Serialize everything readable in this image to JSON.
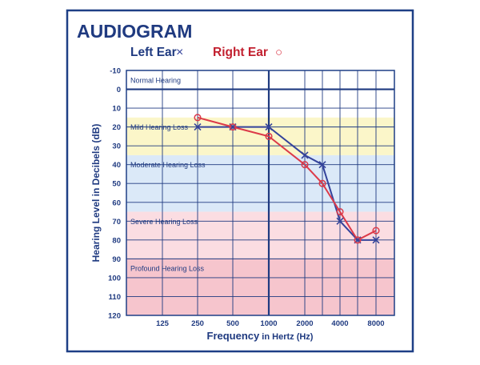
{
  "chart_data": {
    "type": "line",
    "title": "AUDIOGRAM",
    "xlabel": {
      "main": "Frequency",
      "suffix": " in Hertz (Hz)"
    },
    "ylabel": "Hearing Level in Decibels (dB)",
    "x_ticks": [
      {
        "value": 125,
        "label": "125"
      },
      {
        "value": 250,
        "label": "250"
      },
      {
        "value": 500,
        "label": "500"
      },
      {
        "value": 1000,
        "label": "1000"
      },
      {
        "value": 2000,
        "label": "2000"
      },
      {
        "value": 3000,
        "label": ""
      },
      {
        "value": 4000,
        "label": "4000"
      },
      {
        "value": 6000,
        "label": ""
      },
      {
        "value": 8000,
        "label": "8000"
      }
    ],
    "y_ticks": [
      "-10",
      "0",
      "10",
      "20",
      "30",
      "40",
      "50",
      "60",
      "70",
      "80",
      "90",
      "100",
      "110",
      "120"
    ],
    "ylim": [
      -10,
      120
    ],
    "y_inverted": true,
    "zones": [
      {
        "label": "Normal Hearing",
        "from": -10,
        "to": 15,
        "color": "#ffffff"
      },
      {
        "label": "Mild Hearing Loss",
        "from": 15,
        "to": 35,
        "color": "#fbf6c9"
      },
      {
        "label": "Moderate Hearing Loss",
        "from": 35,
        "to": 65,
        "color": "#dbe9f8"
      },
      {
        "label": "Severe Hearing Loss",
        "from": 65,
        "to": 90,
        "color": "#fbdde2"
      },
      {
        "label": "Profound Hearing Loss",
        "from": 90,
        "to": 120,
        "color": "#f6c5cd"
      }
    ],
    "series": [
      {
        "name": "Left Ear",
        "symbol": "×",
        "marker": "x",
        "color": "#34439b",
        "points": [
          {
            "x": 250,
            "y": 20
          },
          {
            "x": 500,
            "y": 20
          },
          {
            "x": 1000,
            "y": 20
          },
          {
            "x": 2000,
            "y": 35
          },
          {
            "x": 3000,
            "y": 40
          },
          {
            "x": 4000,
            "y": 70
          },
          {
            "x": 6000,
            "y": 80
          },
          {
            "x": 8000,
            "y": 80
          }
        ]
      },
      {
        "name": "Right Ear",
        "symbol": "○",
        "marker": "circle",
        "color": "#dc3a49",
        "points": [
          {
            "x": 250,
            "y": 15
          },
          {
            "x": 500,
            "y": 20
          },
          {
            "x": 1000,
            "y": 25
          },
          {
            "x": 2000,
            "y": 40
          },
          {
            "x": 3000,
            "y": 50
          },
          {
            "x": 4000,
            "y": 65
          },
          {
            "x": 6000,
            "y": 80
          },
          {
            "x": 8000,
            "y": 75
          }
        ]
      }
    ],
    "colors": {
      "frame": "#1e3f86",
      "grid": "#1f3a80",
      "text": "#1f3a80",
      "zone_label": "#1f3a80",
      "right_legend": "#c2202f"
    }
  }
}
